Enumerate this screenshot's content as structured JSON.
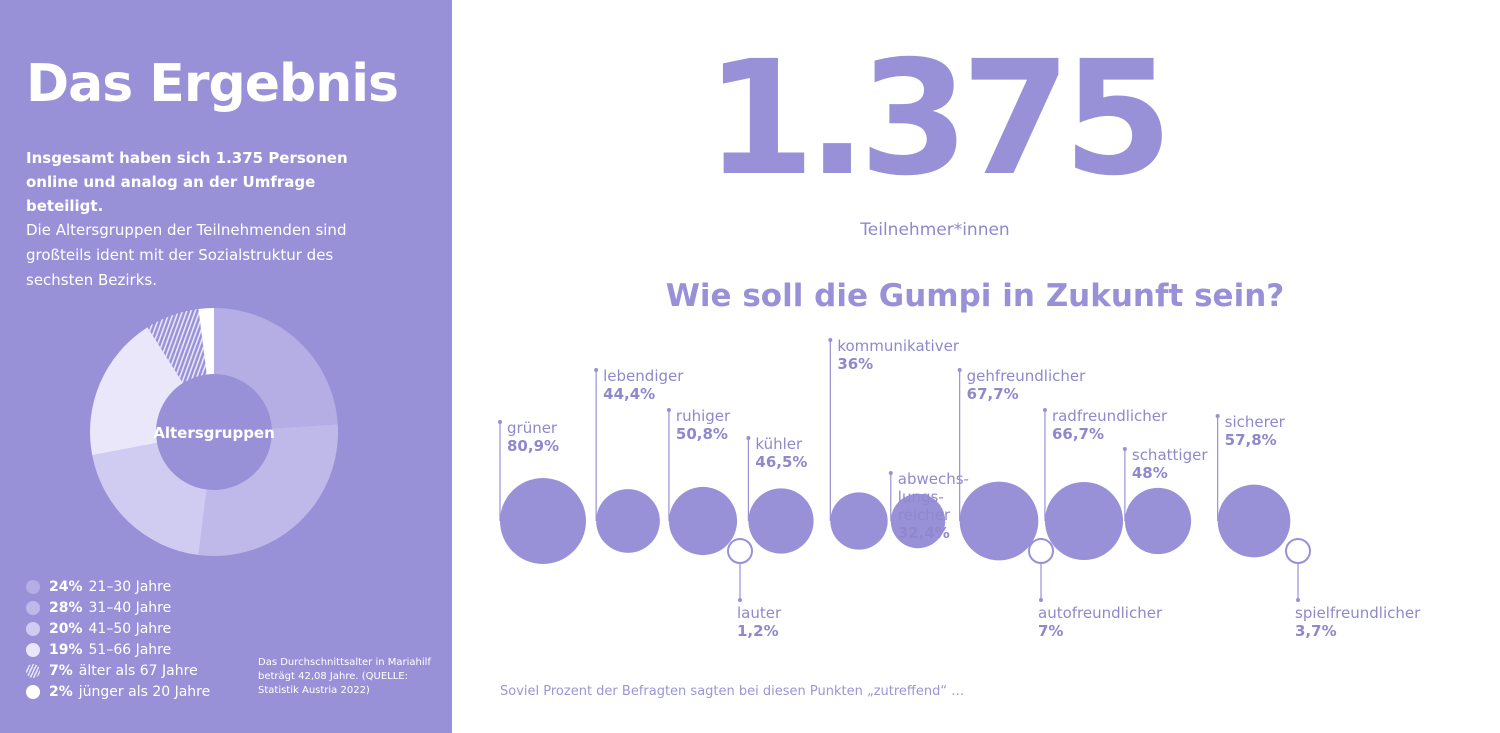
{
  "left": {
    "title": "Das Ergebnis",
    "intro": "Insgesamt haben sich 1.375 Personen online und analog an der Umfrage beteiligt.",
    "description": "Die Altersgruppen der Teilnehmenden sind großteils ident mit der Sozialstruktur des sechsten Bezirks.",
    "note": "Das Durchschnittsalter in Mariahilf beträgt 42,08 Jahre. (QUELLE: Statistik Austria 2022)"
  },
  "headline": {
    "number": "1.375",
    "label": "Teilnehmer*innen",
    "question": "Wie soll die Gumpi in Zukunft sein?"
  },
  "footer": "Soviel Prozent der Befragten sagten bei diesen Punkten „zutreffend“ …",
  "colors": {
    "panel": "#9891d8",
    "bubble": "#9891d8",
    "text_accent": "#8f88cd",
    "donut": [
      "#b4aee5",
      "#bfb9ea",
      "#d0cbf0",
      "#e9e7f9",
      "#e9e7f9",
      "#ffffff"
    ]
  },
  "chart_data": [
    {
      "type": "pie",
      "center_label": "Altersgruppen",
      "slices": [
        {
          "label": "21–30 Jahre",
          "pct_label": "24%",
          "value": 24,
          "color": "#b4aee5",
          "pattern": "solid"
        },
        {
          "label": "31–40 Jahre",
          "pct_label": "28%",
          "value": 28,
          "color": "#bfb9ea",
          "pattern": "solid"
        },
        {
          "label": "41–50 Jahre",
          "pct_label": "20%",
          "value": 20,
          "color": "#d0cbf0",
          "pattern": "solid"
        },
        {
          "label": "51–66 Jahre",
          "pct_label": "19%",
          "value": 19,
          "color": "#e9e7f9",
          "pattern": "solid"
        },
        {
          "label": "älter als 67 Jahre",
          "pct_label": "7%",
          "value": 7,
          "color": "#e9e7f9",
          "pattern": "hatched"
        },
        {
          "label": "jünger als 20 Jahre",
          "pct_label": "2%",
          "value": 2,
          "color": "#ffffff",
          "pattern": "solid"
        }
      ]
    },
    {
      "type": "scatter",
      "description_encoding": "bubble area = percent answering 'zutreffend'",
      "items": [
        {
          "label": "grüner",
          "value_label": "80,9%",
          "value": 80.9,
          "style": "filled",
          "label_position": "above"
        },
        {
          "label": "lebendiger",
          "value_label": "44,4%",
          "value": 44.4,
          "style": "filled",
          "label_position": "above"
        },
        {
          "label": "ruhiger",
          "value_label": "50,8%",
          "value": 50.8,
          "style": "filled",
          "label_position": "above"
        },
        {
          "label": "lauter",
          "value_label": "1,2%",
          "value": 1.2,
          "style": "outline",
          "label_position": "below"
        },
        {
          "label": "kühler",
          "value_label": "46,5%",
          "value": 46.5,
          "style": "filled",
          "label_position": "above"
        },
        {
          "label": "kommunikativer",
          "value_label": "36%",
          "value": 36,
          "style": "filled",
          "label_position": "above"
        },
        {
          "label": "abwechs- lungs- reicher",
          "value_label": "32,4%",
          "value": 32.4,
          "style": "filled",
          "label_position": "above"
        },
        {
          "label": "gehfreundlicher",
          "value_label": "67,7%",
          "value": 67.7,
          "style": "filled",
          "label_position": "above"
        },
        {
          "label": "autofreundlicher",
          "value_label": "7%",
          "value": 7,
          "style": "outline",
          "label_position": "below"
        },
        {
          "label": "radfreundlicher",
          "value_label": "66,7%",
          "value": 66.7,
          "style": "filled",
          "label_position": "above"
        },
        {
          "label": "schattiger",
          "value_label": "48%",
          "value": 48,
          "style": "filled",
          "label_position": "above"
        },
        {
          "label": "sicherer",
          "value_label": "57,8%",
          "value": 57.8,
          "style": "filled",
          "label_position": "above"
        },
        {
          "label": "spielfreundlicher",
          "value_label": "3,7%",
          "value": 3.7,
          "style": "outline",
          "label_position": "below"
        }
      ]
    }
  ]
}
